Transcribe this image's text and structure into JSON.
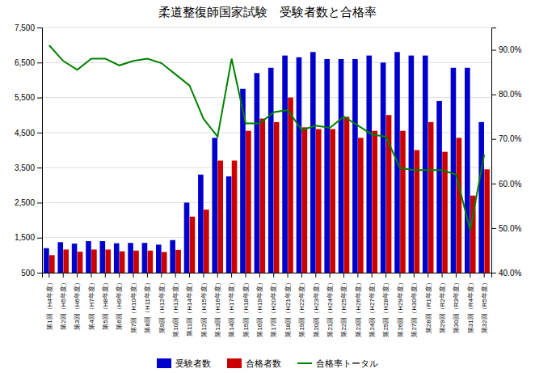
{
  "chart_data": {
    "type": "bar",
    "title": "柔道整復師国家試験　受験者数と合格率",
    "categories": [
      "第1回（H4年度）",
      "第2回（H5年度）",
      "第3回（H6年度）",
      "第4回（H7年度）",
      "第5回（H8年度）",
      "第6回（H9年度）",
      "第7回（H10年度）",
      "第8回（H11年度）",
      "第9回（H12年度）",
      "第10回（H13年度）",
      "第11回（H14年度）",
      "第12回（H15年度）",
      "第13回（H16年度）",
      "第14回（H17年度）",
      "第15回（H18年度）",
      "第16回（H19年度）",
      "第17回（H20年度）",
      "第18回（H21年度）",
      "第19回（H22年度）",
      "第20回（H23年度）",
      "第21回（H24年度）",
      "第22回（H25年度）",
      "第23回（H26年度）",
      "第24回（H27年度）",
      "第25回（H28年度）",
      "第26回（H29年度）",
      "第27回（H30年度）",
      "第28回（R1年度）",
      "第29回（R2年度）",
      "第30回（R3年度）",
      "第31回（R4年度）",
      "第32回（R5年度）"
    ],
    "series": [
      {
        "name": "受験者数",
        "type": "bar",
        "color": "#0000CC",
        "values": [
          1200,
          1370,
          1330,
          1400,
          1400,
          1340,
          1350,
          1350,
          1300,
          1430,
          2500,
          3300,
          4350,
          3250,
          5750,
          6200,
          6350,
          6700,
          6650,
          6800,
          6600,
          6600,
          6600,
          6700,
          6500,
          6800,
          6700,
          6700,
          5400,
          6350,
          6350,
          4800
        ]
      },
      {
        "name": "合格者数",
        "type": "bar",
        "color": "#CC0000",
        "values": [
          1000,
          1160,
          1100,
          1160,
          1160,
          1110,
          1130,
          1130,
          1090,
          1150,
          2100,
          2300,
          3700,
          3700,
          4550,
          4900,
          4800,
          5500,
          4650,
          4600,
          4600,
          4950,
          4350,
          4550,
          5000,
          4550,
          4000,
          4800,
          3950,
          4350,
          2700,
          3450
        ]
      },
      {
        "name": "合格率トータル",
        "type": "line",
        "axis": "y2",
        "color": "#008000",
        "values": [
          91.0,
          87.5,
          85.5,
          88.0,
          88.0,
          86.5,
          87.5,
          88.0,
          87.0,
          84.5,
          82.0,
          74.5,
          70.5,
          88.0,
          73.5,
          73.5,
          76.0,
          76.5,
          72.0,
          73.0,
          72.5,
          75.0,
          73.0,
          71.0,
          70.5,
          63.5,
          63.0,
          63.0,
          63.0,
          62.0,
          49.5,
          66.5
        ]
      }
    ],
    "ylim": [
      500,
      7500
    ],
    "yticks": [
      500,
      {
        "value": 1500,
        "label": "1,500"
      },
      {
        "value": 2500,
        "label": "2,500"
      },
      {
        "value": 3500,
        "label": "3,500"
      },
      {
        "value": 4500,
        "label": "4,500"
      },
      {
        "value": 5500,
        "label": "5,500"
      },
      {
        "value": 6500,
        "label": "6,500"
      },
      {
        "value": 7500,
        "label": "7,500"
      }
    ],
    "y2lim": [
      40.0,
      95.0
    ],
    "y2ticks": [
      {
        "value": 40.0,
        "label": "40.0%"
      },
      {
        "value": 50.0,
        "label": "50.0%"
      },
      {
        "value": 60.0,
        "label": "60.0%"
      },
      {
        "value": 70.0,
        "label": "70.0%"
      },
      {
        "value": 80.0,
        "label": "80.0%"
      },
      {
        "value": 90.0,
        "label": "90.0%"
      }
    ],
    "grid": true,
    "legend": "bottom"
  }
}
